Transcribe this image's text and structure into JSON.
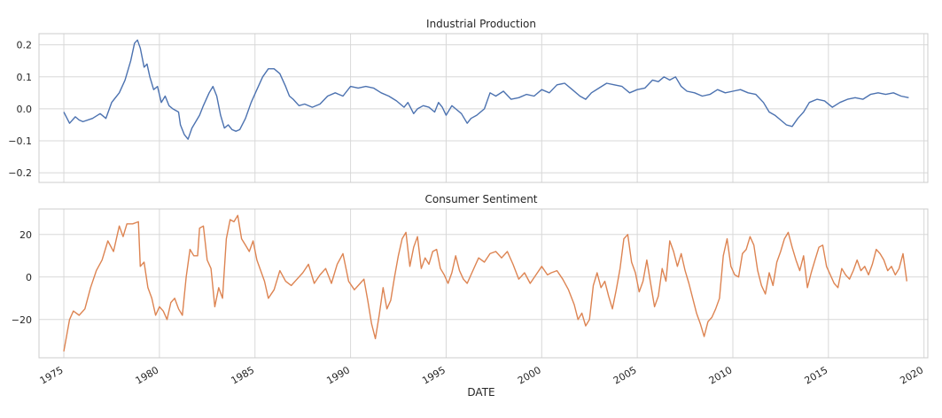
{
  "chart_data": [
    {
      "type": "line",
      "title": "Industrial Production",
      "xlabel": "",
      "ylabel": "",
      "xlim": [
        1973.7,
        2020.2
      ],
      "ylim": [
        -0.23,
        0.235
      ],
      "yticks": [
        -0.2,
        -0.1,
        0.0,
        0.1,
        0.2
      ],
      "ytick_labels": [
        "−0.2",
        "−0.1",
        "0.0",
        "0.1",
        "0.2"
      ],
      "grid": true,
      "color": "#4c72b0",
      "points": [
        [
          1975.0,
          -0.01
        ],
        [
          1975.3,
          -0.045
        ],
        [
          1975.6,
          -0.025
        ],
        [
          1975.8,
          -0.035
        ],
        [
          1976.0,
          -0.04
        ],
        [
          1976.5,
          -0.03
        ],
        [
          1976.9,
          -0.015
        ],
        [
          1977.2,
          -0.03
        ],
        [
          1977.5,
          0.02
        ],
        [
          1977.9,
          0.05
        ],
        [
          1978.2,
          0.09
        ],
        [
          1978.5,
          0.15
        ],
        [
          1978.7,
          0.205
        ],
        [
          1978.85,
          0.215
        ],
        [
          1979.0,
          0.19
        ],
        [
          1979.2,
          0.13
        ],
        [
          1979.35,
          0.14
        ],
        [
          1979.5,
          0.1
        ],
        [
          1979.7,
          0.06
        ],
        [
          1979.9,
          0.07
        ],
        [
          1980.1,
          0.02
        ],
        [
          1980.3,
          0.04
        ],
        [
          1980.5,
          0.01
        ],
        [
          1980.7,
          0.0
        ],
        [
          1981.0,
          -0.01
        ],
        [
          1981.1,
          -0.05
        ],
        [
          1981.3,
          -0.08
        ],
        [
          1981.5,
          -0.095
        ],
        [
          1981.7,
          -0.06
        ],
        [
          1981.9,
          -0.04
        ],
        [
          1982.1,
          -0.02
        ],
        [
          1982.3,
          0.01
        ],
        [
          1982.6,
          0.05
        ],
        [
          1982.8,
          0.07
        ],
        [
          1983.0,
          0.04
        ],
        [
          1983.2,
          -0.02
        ],
        [
          1983.4,
          -0.06
        ],
        [
          1983.6,
          -0.05
        ],
        [
          1983.8,
          -0.065
        ],
        [
          1984.0,
          -0.07
        ],
        [
          1984.2,
          -0.065
        ],
        [
          1984.5,
          -0.03
        ],
        [
          1984.8,
          0.02
        ],
        [
          1985.1,
          0.06
        ],
        [
          1985.4,
          0.1
        ],
        [
          1985.7,
          0.125
        ],
        [
          1986.0,
          0.125
        ],
        [
          1986.3,
          0.11
        ],
        [
          1986.6,
          0.07
        ],
        [
          1986.8,
          0.04
        ],
        [
          1987.0,
          0.03
        ],
        [
          1987.3,
          0.01
        ],
        [
          1987.6,
          0.015
        ],
        [
          1988.0,
          0.005
        ],
        [
          1988.4,
          0.015
        ],
        [
          1988.8,
          0.04
        ],
        [
          1989.2,
          0.05
        ],
        [
          1989.6,
          0.04
        ],
        [
          1990.0,
          0.07
        ],
        [
          1990.4,
          0.065
        ],
        [
          1990.8,
          0.07
        ],
        [
          1991.2,
          0.065
        ],
        [
          1991.6,
          0.05
        ],
        [
          1992.0,
          0.04
        ],
        [
          1992.4,
          0.025
        ],
        [
          1992.8,
          0.005
        ],
        [
          1993.0,
          0.02
        ],
        [
          1993.3,
          -0.015
        ],
        [
          1993.5,
          0.0
        ],
        [
          1993.8,
          0.01
        ],
        [
          1994.1,
          0.005
        ],
        [
          1994.4,
          -0.01
        ],
        [
          1994.6,
          0.02
        ],
        [
          1994.8,
          0.005
        ],
        [
          1995.0,
          -0.02
        ],
        [
          1995.3,
          0.01
        ],
        [
          1995.5,
          0.0
        ],
        [
          1995.8,
          -0.015
        ],
        [
          1996.1,
          -0.045
        ],
        [
          1996.3,
          -0.03
        ],
        [
          1996.6,
          -0.02
        ],
        [
          1997.0,
          0.0
        ],
        [
          1997.3,
          0.05
        ],
        [
          1997.6,
          0.04
        ],
        [
          1998.0,
          0.055
        ],
        [
          1998.4,
          0.03
        ],
        [
          1998.8,
          0.035
        ],
        [
          1999.2,
          0.045
        ],
        [
          1999.6,
          0.04
        ],
        [
          2000.0,
          0.06
        ],
        [
          2000.4,
          0.05
        ],
        [
          2000.8,
          0.075
        ],
        [
          2001.2,
          0.08
        ],
        [
          2001.6,
          0.06
        ],
        [
          2002.0,
          0.04
        ],
        [
          2002.3,
          0.03
        ],
        [
          2002.6,
          0.05
        ],
        [
          2003.0,
          0.065
        ],
        [
          2003.4,
          0.08
        ],
        [
          2003.8,
          0.075
        ],
        [
          2004.2,
          0.07
        ],
        [
          2004.6,
          0.05
        ],
        [
          2005.0,
          0.06
        ],
        [
          2005.4,
          0.065
        ],
        [
          2005.8,
          0.09
        ],
        [
          2006.1,
          0.085
        ],
        [
          2006.4,
          0.1
        ],
        [
          2006.7,
          0.09
        ],
        [
          2007.0,
          0.1
        ],
        [
          2007.3,
          0.07
        ],
        [
          2007.6,
          0.055
        ],
        [
          2008.0,
          0.05
        ],
        [
          2008.4,
          0.04
        ],
        [
          2008.8,
          0.045
        ],
        [
          2009.2,
          0.06
        ],
        [
          2009.6,
          0.05
        ],
        [
          2010.0,
          0.055
        ],
        [
          2010.4,
          0.06
        ],
        [
          2010.8,
          0.05
        ],
        [
          2011.2,
          0.045
        ],
        [
          2011.6,
          0.02
        ],
        [
          2011.9,
          -0.01
        ],
        [
          2012.2,
          -0.02
        ],
        [
          2012.5,
          -0.035
        ],
        [
          2012.8,
          -0.05
        ],
        [
          2013.1,
          -0.055
        ],
        [
          2013.4,
          -0.03
        ],
        [
          2013.7,
          -0.01
        ],
        [
          2014.0,
          0.02
        ],
        [
          2014.4,
          0.03
        ],
        [
          2014.8,
          0.025
        ],
        [
          2015.2,
          0.005
        ],
        [
          2015.6,
          0.02
        ],
        [
          2016.0,
          0.03
        ],
        [
          2016.4,
          0.035
        ],
        [
          2016.8,
          0.03
        ],
        [
          2017.2,
          0.045
        ],
        [
          2017.6,
          0.05
        ],
        [
          2018.0,
          0.045
        ],
        [
          2018.4,
          0.05
        ],
        [
          2018.8,
          0.04
        ],
        [
          2019.2,
          0.035
        ]
      ]
    },
    {
      "type": "line",
      "title": "Consumer Sentiment",
      "xlabel": "DATE",
      "ylabel": "",
      "xlim": [
        1973.7,
        2020.2
      ],
      "ylim": [
        -38,
        32
      ],
      "yticks": [
        -20,
        0,
        20
      ],
      "ytick_labels": [
        "−20",
        "0",
        "20"
      ],
      "grid": true,
      "color": "#dd8452",
      "points": [
        [
          1975.0,
          -35
        ],
        [
          1975.3,
          -20
        ],
        [
          1975.5,
          -16
        ],
        [
          1975.8,
          -18
        ],
        [
          1976.1,
          -15
        ],
        [
          1976.4,
          -5
        ],
        [
          1976.7,
          3
        ],
        [
          1977.0,
          8
        ],
        [
          1977.3,
          17
        ],
        [
          1977.6,
          12
        ],
        [
          1977.9,
          24
        ],
        [
          1978.1,
          19
        ],
        [
          1978.3,
          25
        ],
        [
          1978.6,
          25
        ],
        [
          1978.9,
          26
        ],
        [
          1979.0,
          5
        ],
        [
          1979.2,
          7
        ],
        [
          1979.4,
          -5
        ],
        [
          1979.6,
          -10
        ],
        [
          1979.8,
          -18
        ],
        [
          1980.0,
          -14
        ],
        [
          1980.2,
          -16
        ],
        [
          1980.4,
          -20
        ],
        [
          1980.6,
          -12
        ],
        [
          1980.8,
          -10
        ],
        [
          1981.0,
          -15
        ],
        [
          1981.2,
          -18
        ],
        [
          1981.4,
          0
        ],
        [
          1981.6,
          13
        ],
        [
          1981.8,
          10
        ],
        [
          1982.0,
          10
        ],
        [
          1982.1,
          23
        ],
        [
          1982.3,
          24
        ],
        [
          1982.5,
          8
        ],
        [
          1982.7,
          4
        ],
        [
          1982.9,
          -14
        ],
        [
          1983.1,
          -5
        ],
        [
          1983.3,
          -10
        ],
        [
          1983.5,
          18
        ],
        [
          1983.7,
          27
        ],
        [
          1983.9,
          26
        ],
        [
          1984.1,
          29
        ],
        [
          1984.3,
          18
        ],
        [
          1984.5,
          15
        ],
        [
          1984.7,
          12
        ],
        [
          1984.9,
          17
        ],
        [
          1985.1,
          8
        ],
        [
          1985.3,
          3
        ],
        [
          1985.5,
          -2
        ],
        [
          1985.7,
          -10
        ],
        [
          1986.0,
          -6
        ],
        [
          1986.3,
          3
        ],
        [
          1986.6,
          -2
        ],
        [
          1986.9,
          -4
        ],
        [
          1987.2,
          -1
        ],
        [
          1987.5,
          2
        ],
        [
          1987.8,
          6
        ],
        [
          1988.1,
          -3
        ],
        [
          1988.4,
          1
        ],
        [
          1988.7,
          4
        ],
        [
          1989.0,
          -3
        ],
        [
          1989.3,
          6
        ],
        [
          1989.6,
          11
        ],
        [
          1989.9,
          -2
        ],
        [
          1990.2,
          -6
        ],
        [
          1990.5,
          -3
        ],
        [
          1990.7,
          -1
        ],
        [
          1990.9,
          -11
        ],
        [
          1991.1,
          -22
        ],
        [
          1991.3,
          -29
        ],
        [
          1991.5,
          -18
        ],
        [
          1991.7,
          -5
        ],
        [
          1991.9,
          -15
        ],
        [
          1992.1,
          -11
        ],
        [
          1992.3,
          0
        ],
        [
          1992.5,
          10
        ],
        [
          1992.7,
          18
        ],
        [
          1992.9,
          21
        ],
        [
          1993.1,
          5
        ],
        [
          1993.3,
          14
        ],
        [
          1993.5,
          19
        ],
        [
          1993.7,
          4
        ],
        [
          1993.9,
          9
        ],
        [
          1994.1,
          6
        ],
        [
          1994.3,
          12
        ],
        [
          1994.5,
          13
        ],
        [
          1994.7,
          4
        ],
        [
          1994.9,
          1
        ],
        [
          1995.1,
          -3
        ],
        [
          1995.3,
          2
        ],
        [
          1995.5,
          10
        ],
        [
          1995.7,
          3
        ],
        [
          1995.9,
          -1
        ],
        [
          1996.1,
          -3
        ],
        [
          1996.4,
          3
        ],
        [
          1996.7,
          9
        ],
        [
          1997.0,
          7
        ],
        [
          1997.3,
          11
        ],
        [
          1997.6,
          12
        ],
        [
          1997.9,
          9
        ],
        [
          1998.2,
          12
        ],
        [
          1998.5,
          6
        ],
        [
          1998.8,
          -1
        ],
        [
          1999.1,
          2
        ],
        [
          1999.4,
          -3
        ],
        [
          1999.7,
          1
        ],
        [
          2000.0,
          5
        ],
        [
          2000.3,
          1
        ],
        [
          2000.5,
          2
        ],
        [
          2000.8,
          3
        ],
        [
          2001.1,
          -1
        ],
        [
          2001.4,
          -6
        ],
        [
          2001.7,
          -13
        ],
        [
          2001.9,
          -20
        ],
        [
          2002.1,
          -17
        ],
        [
          2002.3,
          -23
        ],
        [
          2002.5,
          -20
        ],
        [
          2002.7,
          -4
        ],
        [
          2002.9,
          2
        ],
        [
          2003.1,
          -5
        ],
        [
          2003.3,
          -2
        ],
        [
          2003.5,
          -9
        ],
        [
          2003.7,
          -15
        ],
        [
          2003.9,
          -6
        ],
        [
          2004.1,
          4
        ],
        [
          2004.3,
          18
        ],
        [
          2004.5,
          20
        ],
        [
          2004.7,
          7
        ],
        [
          2004.9,
          2
        ],
        [
          2005.1,
          -7
        ],
        [
          2005.3,
          -2
        ],
        [
          2005.5,
          8
        ],
        [
          2005.7,
          -3
        ],
        [
          2005.9,
          -14
        ],
        [
          2006.1,
          -9
        ],
        [
          2006.3,
          4
        ],
        [
          2006.5,
          -2
        ],
        [
          2006.7,
          17
        ],
        [
          2006.9,
          12
        ],
        [
          2007.1,
          5
        ],
        [
          2007.3,
          11
        ],
        [
          2007.5,
          3
        ],
        [
          2007.7,
          -3
        ],
        [
          2007.9,
          -10
        ],
        [
          2008.1,
          -17
        ],
        [
          2008.3,
          -22
        ],
        [
          2008.5,
          -28
        ],
        [
          2008.7,
          -21
        ],
        [
          2008.9,
          -19
        ],
        [
          2009.1,
          -15
        ],
        [
          2009.3,
          -10
        ],
        [
          2009.5,
          10
        ],
        [
          2009.7,
          18
        ],
        [
          2009.9,
          5
        ],
        [
          2010.1,
          1
        ],
        [
          2010.3,
          0
        ],
        [
          2010.5,
          11
        ],
        [
          2010.7,
          13
        ],
        [
          2010.9,
          19
        ],
        [
          2011.1,
          15
        ],
        [
          2011.3,
          3
        ],
        [
          2011.5,
          -4
        ],
        [
          2011.7,
          -8
        ],
        [
          2011.9,
          2
        ],
        [
          2012.1,
          -4
        ],
        [
          2012.3,
          7
        ],
        [
          2012.5,
          12
        ],
        [
          2012.7,
          18
        ],
        [
          2012.9,
          21
        ],
        [
          2013.1,
          14
        ],
        [
          2013.3,
          8
        ],
        [
          2013.5,
          3
        ],
        [
          2013.7,
          10
        ],
        [
          2013.9,
          -5
        ],
        [
          2014.1,
          2
        ],
        [
          2014.3,
          8
        ],
        [
          2014.5,
          14
        ],
        [
          2014.7,
          15
        ],
        [
          2014.9,
          5
        ],
        [
          2015.1,
          1
        ],
        [
          2015.3,
          -3
        ],
        [
          2015.5,
          -5
        ],
        [
          2015.7,
          4
        ],
        [
          2015.9,
          1
        ],
        [
          2016.1,
          -1
        ],
        [
          2016.3,
          3
        ],
        [
          2016.5,
          8
        ],
        [
          2016.7,
          3
        ],
        [
          2016.9,
          5
        ],
        [
          2017.1,
          1
        ],
        [
          2017.3,
          6
        ],
        [
          2017.5,
          13
        ],
        [
          2017.7,
          11
        ],
        [
          2017.9,
          8
        ],
        [
          2018.1,
          3
        ],
        [
          2018.3,
          5
        ],
        [
          2018.5,
          1
        ],
        [
          2018.7,
          4
        ],
        [
          2018.9,
          11
        ],
        [
          2019.1,
          -2
        ]
      ]
    }
  ],
  "shared_x": {
    "ticks": [
      1975,
      1980,
      1985,
      1990,
      1995,
      2000,
      2005,
      2010,
      2015,
      2020
    ],
    "tick_labels": [
      "1975",
      "1980",
      "1985",
      "1990",
      "1995",
      "2000",
      "2005",
      "2010",
      "2015",
      "2020"
    ],
    "label": "DATE"
  },
  "colors": {
    "grid": "#d8d8d8",
    "frame": "#cccccc",
    "text": "#262626"
  }
}
